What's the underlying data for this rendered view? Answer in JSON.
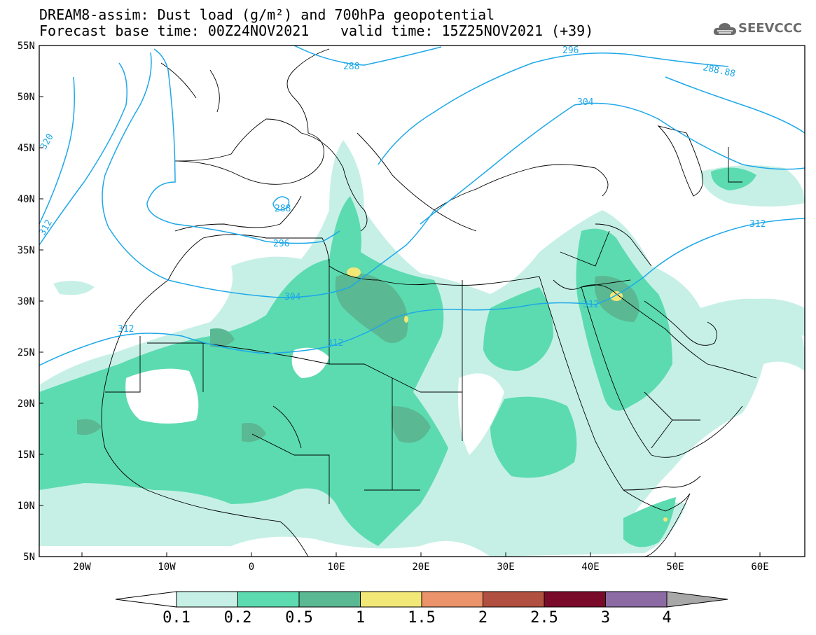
{
  "title": {
    "line1": "DREAM8-assim: Dust load (g/m²) and 700hPa geopotential",
    "line2_base": "Forecast base time: 00Z24NOV2021",
    "line2_valid": "valid time: 15Z25NOV2021 (+39)"
  },
  "logo": {
    "text": "SEEVCCC",
    "icon": "cloud-logo-icon"
  },
  "axes": {
    "lat_labels": [
      "55N",
      "50N",
      "45N",
      "40N",
      "35N",
      "30N",
      "25N",
      "20N",
      "15N",
      "10N",
      "5N"
    ],
    "lon_labels": [
      "20W",
      "10W",
      "0",
      "10E",
      "20E",
      "30E",
      "40E",
      "50E",
      "60E"
    ]
  },
  "contour_labels": [
    "288",
    "296",
    "288.88",
    "304",
    "320",
    "312",
    "288",
    "296",
    "304",
    "312",
    "312",
    "312",
    "312"
  ],
  "colorbar": {
    "labels": [
      "0.1",
      "0.2",
      "0.5",
      "1",
      "1.5",
      "2",
      "2.5",
      "3",
      "4"
    ],
    "colors": [
      "#ffffff",
      "#c6f0e6",
      "#5cdbb0",
      "#5ab892",
      "#f2e878",
      "#eb936a",
      "#b14f40",
      "#7a0a2a",
      "#8c6aa3",
      "#a8a8a8"
    ]
  },
  "colors": {
    "contour": "#1ea8e8",
    "land_border": "#000000"
  }
}
